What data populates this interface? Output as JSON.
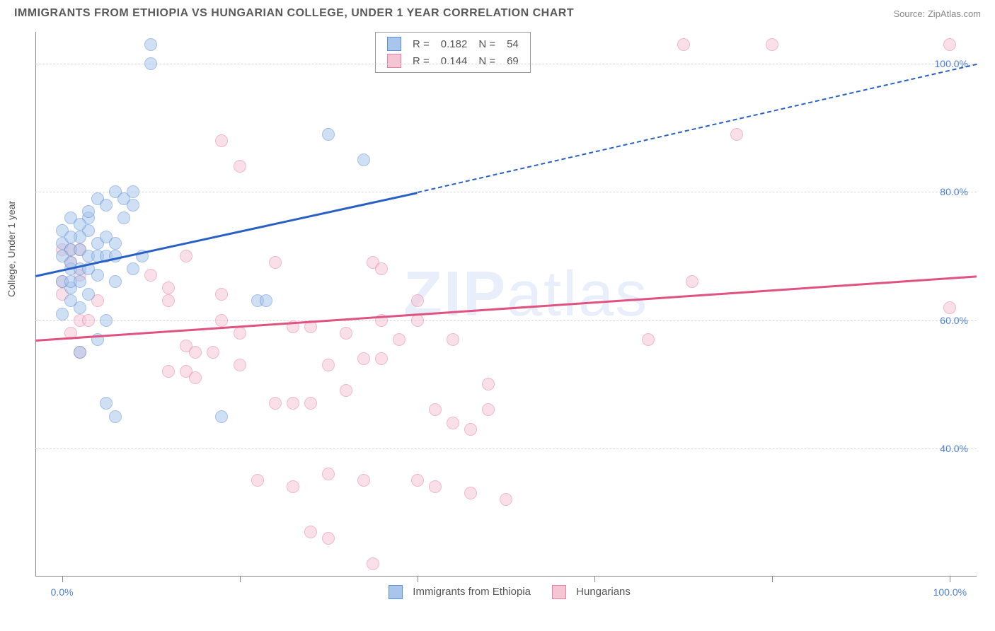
{
  "title": "IMMIGRANTS FROM ETHIOPIA VS HUNGARIAN COLLEGE, UNDER 1 YEAR CORRELATION CHART",
  "source": "Source: ZipAtlas.com",
  "y_axis_label": "College, Under 1 year",
  "watermark": {
    "part1": "ZIP",
    "part2": "atlas"
  },
  "colors": {
    "series_a_fill": "#a8c5ec",
    "series_a_stroke": "#5b8fd6",
    "series_b_fill": "#f5c5d4",
    "series_b_stroke": "#e580a5",
    "trend_a": "#2860c4",
    "trend_b": "#e0527f",
    "tick_label": "#4a7fd8",
    "grid": "#d8d8d8",
    "text": "#555555"
  },
  "marker": {
    "radius": 8,
    "stroke_width": 1.5,
    "opacity": 0.55
  },
  "plot": {
    "x_min": -3,
    "x_max": 103,
    "y_min": 20,
    "y_max": 105,
    "y_ticks": [
      40,
      60,
      80,
      100
    ],
    "y_tick_labels": [
      "40.0%",
      "60.0%",
      "80.0%",
      "100.0%"
    ],
    "x_ticks": [
      0,
      20,
      40,
      60,
      80,
      100
    ],
    "x_tick_labels": {
      "0": "0.0%",
      "100": "100.0%"
    }
  },
  "legend_top": {
    "rows": [
      {
        "swatch": "a",
        "r_label": "R =",
        "r_val": "0.182",
        "n_label": "N =",
        "n_val": "54"
      },
      {
        "swatch": "b",
        "r_label": "R =",
        "r_val": "0.144",
        "n_label": "N =",
        "n_val": "69"
      }
    ]
  },
  "legend_bottom": [
    {
      "swatch": "a",
      "label": "Immigrants from Ethiopia"
    },
    {
      "swatch": "b",
      "label": "Hungarians"
    }
  ],
  "trend_lines": {
    "a": {
      "x1": -3,
      "y1": 67,
      "x2_solid": 40,
      "y2_solid": 80,
      "x2": 103,
      "y2": 100,
      "width": 2.5
    },
    "b": {
      "x1": -3,
      "y1": 57,
      "x2": 103,
      "y2": 67,
      "width": 2.5
    }
  },
  "series_a": [
    {
      "x": 10,
      "y": 103
    },
    {
      "x": 10,
      "y": 100
    },
    {
      "x": 30,
      "y": 89
    },
    {
      "x": 34,
      "y": 85
    },
    {
      "x": 1,
      "y": 76
    },
    {
      "x": 4,
      "y": 79
    },
    {
      "x": 6,
      "y": 80
    },
    {
      "x": 7,
      "y": 79
    },
    {
      "x": 8,
      "y": 78
    },
    {
      "x": 8,
      "y": 80
    },
    {
      "x": 3,
      "y": 74
    },
    {
      "x": 0,
      "y": 72
    },
    {
      "x": 1,
      "y": 71
    },
    {
      "x": 2,
      "y": 71
    },
    {
      "x": 2,
      "y": 73
    },
    {
      "x": 4,
      "y": 72
    },
    {
      "x": 5,
      "y": 73
    },
    {
      "x": 6,
      "y": 72
    },
    {
      "x": 1,
      "y": 68
    },
    {
      "x": 2,
      "y": 68
    },
    {
      "x": 3,
      "y": 68
    },
    {
      "x": 4,
      "y": 67
    },
    {
      "x": 1,
      "y": 65
    },
    {
      "x": 3,
      "y": 64
    },
    {
      "x": 2,
      "y": 62
    },
    {
      "x": 6,
      "y": 66
    },
    {
      "x": 8,
      "y": 68
    },
    {
      "x": 22,
      "y": 63
    },
    {
      "x": 23,
      "y": 63
    },
    {
      "x": 5,
      "y": 60
    },
    {
      "x": 4,
      "y": 57
    },
    {
      "x": 2,
      "y": 55
    },
    {
      "x": 5,
      "y": 47
    },
    {
      "x": 6,
      "y": 45
    },
    {
      "x": 18,
      "y": 45
    },
    {
      "x": 0,
      "y": 74
    },
    {
      "x": 1,
      "y": 73
    },
    {
      "x": 3,
      "y": 76
    },
    {
      "x": 7,
      "y": 76
    },
    {
      "x": 9,
      "y": 70
    },
    {
      "x": 1,
      "y": 69
    },
    {
      "x": 0,
      "y": 66
    },
    {
      "x": 1,
      "y": 66
    },
    {
      "x": 1,
      "y": 63
    },
    {
      "x": 2,
      "y": 66
    },
    {
      "x": 3,
      "y": 70
    },
    {
      "x": 4,
      "y": 70
    },
    {
      "x": 5,
      "y": 70
    },
    {
      "x": 6,
      "y": 70
    },
    {
      "x": 0,
      "y": 70
    },
    {
      "x": 2,
      "y": 75
    },
    {
      "x": 3,
      "y": 77
    },
    {
      "x": 5,
      "y": 78
    },
    {
      "x": 0,
      "y": 61
    }
  ],
  "series_b": [
    {
      "x": 70,
      "y": 103
    },
    {
      "x": 80,
      "y": 103
    },
    {
      "x": 100,
      "y": 103
    },
    {
      "x": 76,
      "y": 89
    },
    {
      "x": 18,
      "y": 88
    },
    {
      "x": 20,
      "y": 84
    },
    {
      "x": 35,
      "y": 69
    },
    {
      "x": 36,
      "y": 68
    },
    {
      "x": 14,
      "y": 70
    },
    {
      "x": 24,
      "y": 69
    },
    {
      "x": 40,
      "y": 63
    },
    {
      "x": 71,
      "y": 66
    },
    {
      "x": 100,
      "y": 62
    },
    {
      "x": 66,
      "y": 57
    },
    {
      "x": 12,
      "y": 65
    },
    {
      "x": 18,
      "y": 64
    },
    {
      "x": 12,
      "y": 63
    },
    {
      "x": 18,
      "y": 60
    },
    {
      "x": 20,
      "y": 58
    },
    {
      "x": 26,
      "y": 59
    },
    {
      "x": 28,
      "y": 59
    },
    {
      "x": 32,
      "y": 58
    },
    {
      "x": 36,
      "y": 60
    },
    {
      "x": 38,
      "y": 57
    },
    {
      "x": 40,
      "y": 60
    },
    {
      "x": 44,
      "y": 57
    },
    {
      "x": 44,
      "y": 44
    },
    {
      "x": 14,
      "y": 56
    },
    {
      "x": 15,
      "y": 55
    },
    {
      "x": 17,
      "y": 55
    },
    {
      "x": 12,
      "y": 52
    },
    {
      "x": 14,
      "y": 52
    },
    {
      "x": 15,
      "y": 51
    },
    {
      "x": 20,
      "y": 53
    },
    {
      "x": 30,
      "y": 53
    },
    {
      "x": 34,
      "y": 54
    },
    {
      "x": 36,
      "y": 54
    },
    {
      "x": 24,
      "y": 47
    },
    {
      "x": 26,
      "y": 47
    },
    {
      "x": 28,
      "y": 47
    },
    {
      "x": 32,
      "y": 49
    },
    {
      "x": 42,
      "y": 46
    },
    {
      "x": 48,
      "y": 46
    },
    {
      "x": 46,
      "y": 43
    },
    {
      "x": 22,
      "y": 35
    },
    {
      "x": 26,
      "y": 34
    },
    {
      "x": 30,
      "y": 36
    },
    {
      "x": 34,
      "y": 35
    },
    {
      "x": 40,
      "y": 35
    },
    {
      "x": 42,
      "y": 34
    },
    {
      "x": 46,
      "y": 33
    },
    {
      "x": 50,
      "y": 32
    },
    {
      "x": 28,
      "y": 27
    },
    {
      "x": 30,
      "y": 26
    },
    {
      "x": 35,
      "y": 22
    },
    {
      "x": 0,
      "y": 66
    },
    {
      "x": 0,
      "y": 64
    },
    {
      "x": 0,
      "y": 71
    },
    {
      "x": 1,
      "y": 71
    },
    {
      "x": 2,
      "y": 71
    },
    {
      "x": 1,
      "y": 69
    },
    {
      "x": 2,
      "y": 67
    },
    {
      "x": 4,
      "y": 63
    },
    {
      "x": 2,
      "y": 60
    },
    {
      "x": 3,
      "y": 60
    },
    {
      "x": 1,
      "y": 58
    },
    {
      "x": 2,
      "y": 55
    },
    {
      "x": 48,
      "y": 50
    },
    {
      "x": 10,
      "y": 67
    }
  ]
}
